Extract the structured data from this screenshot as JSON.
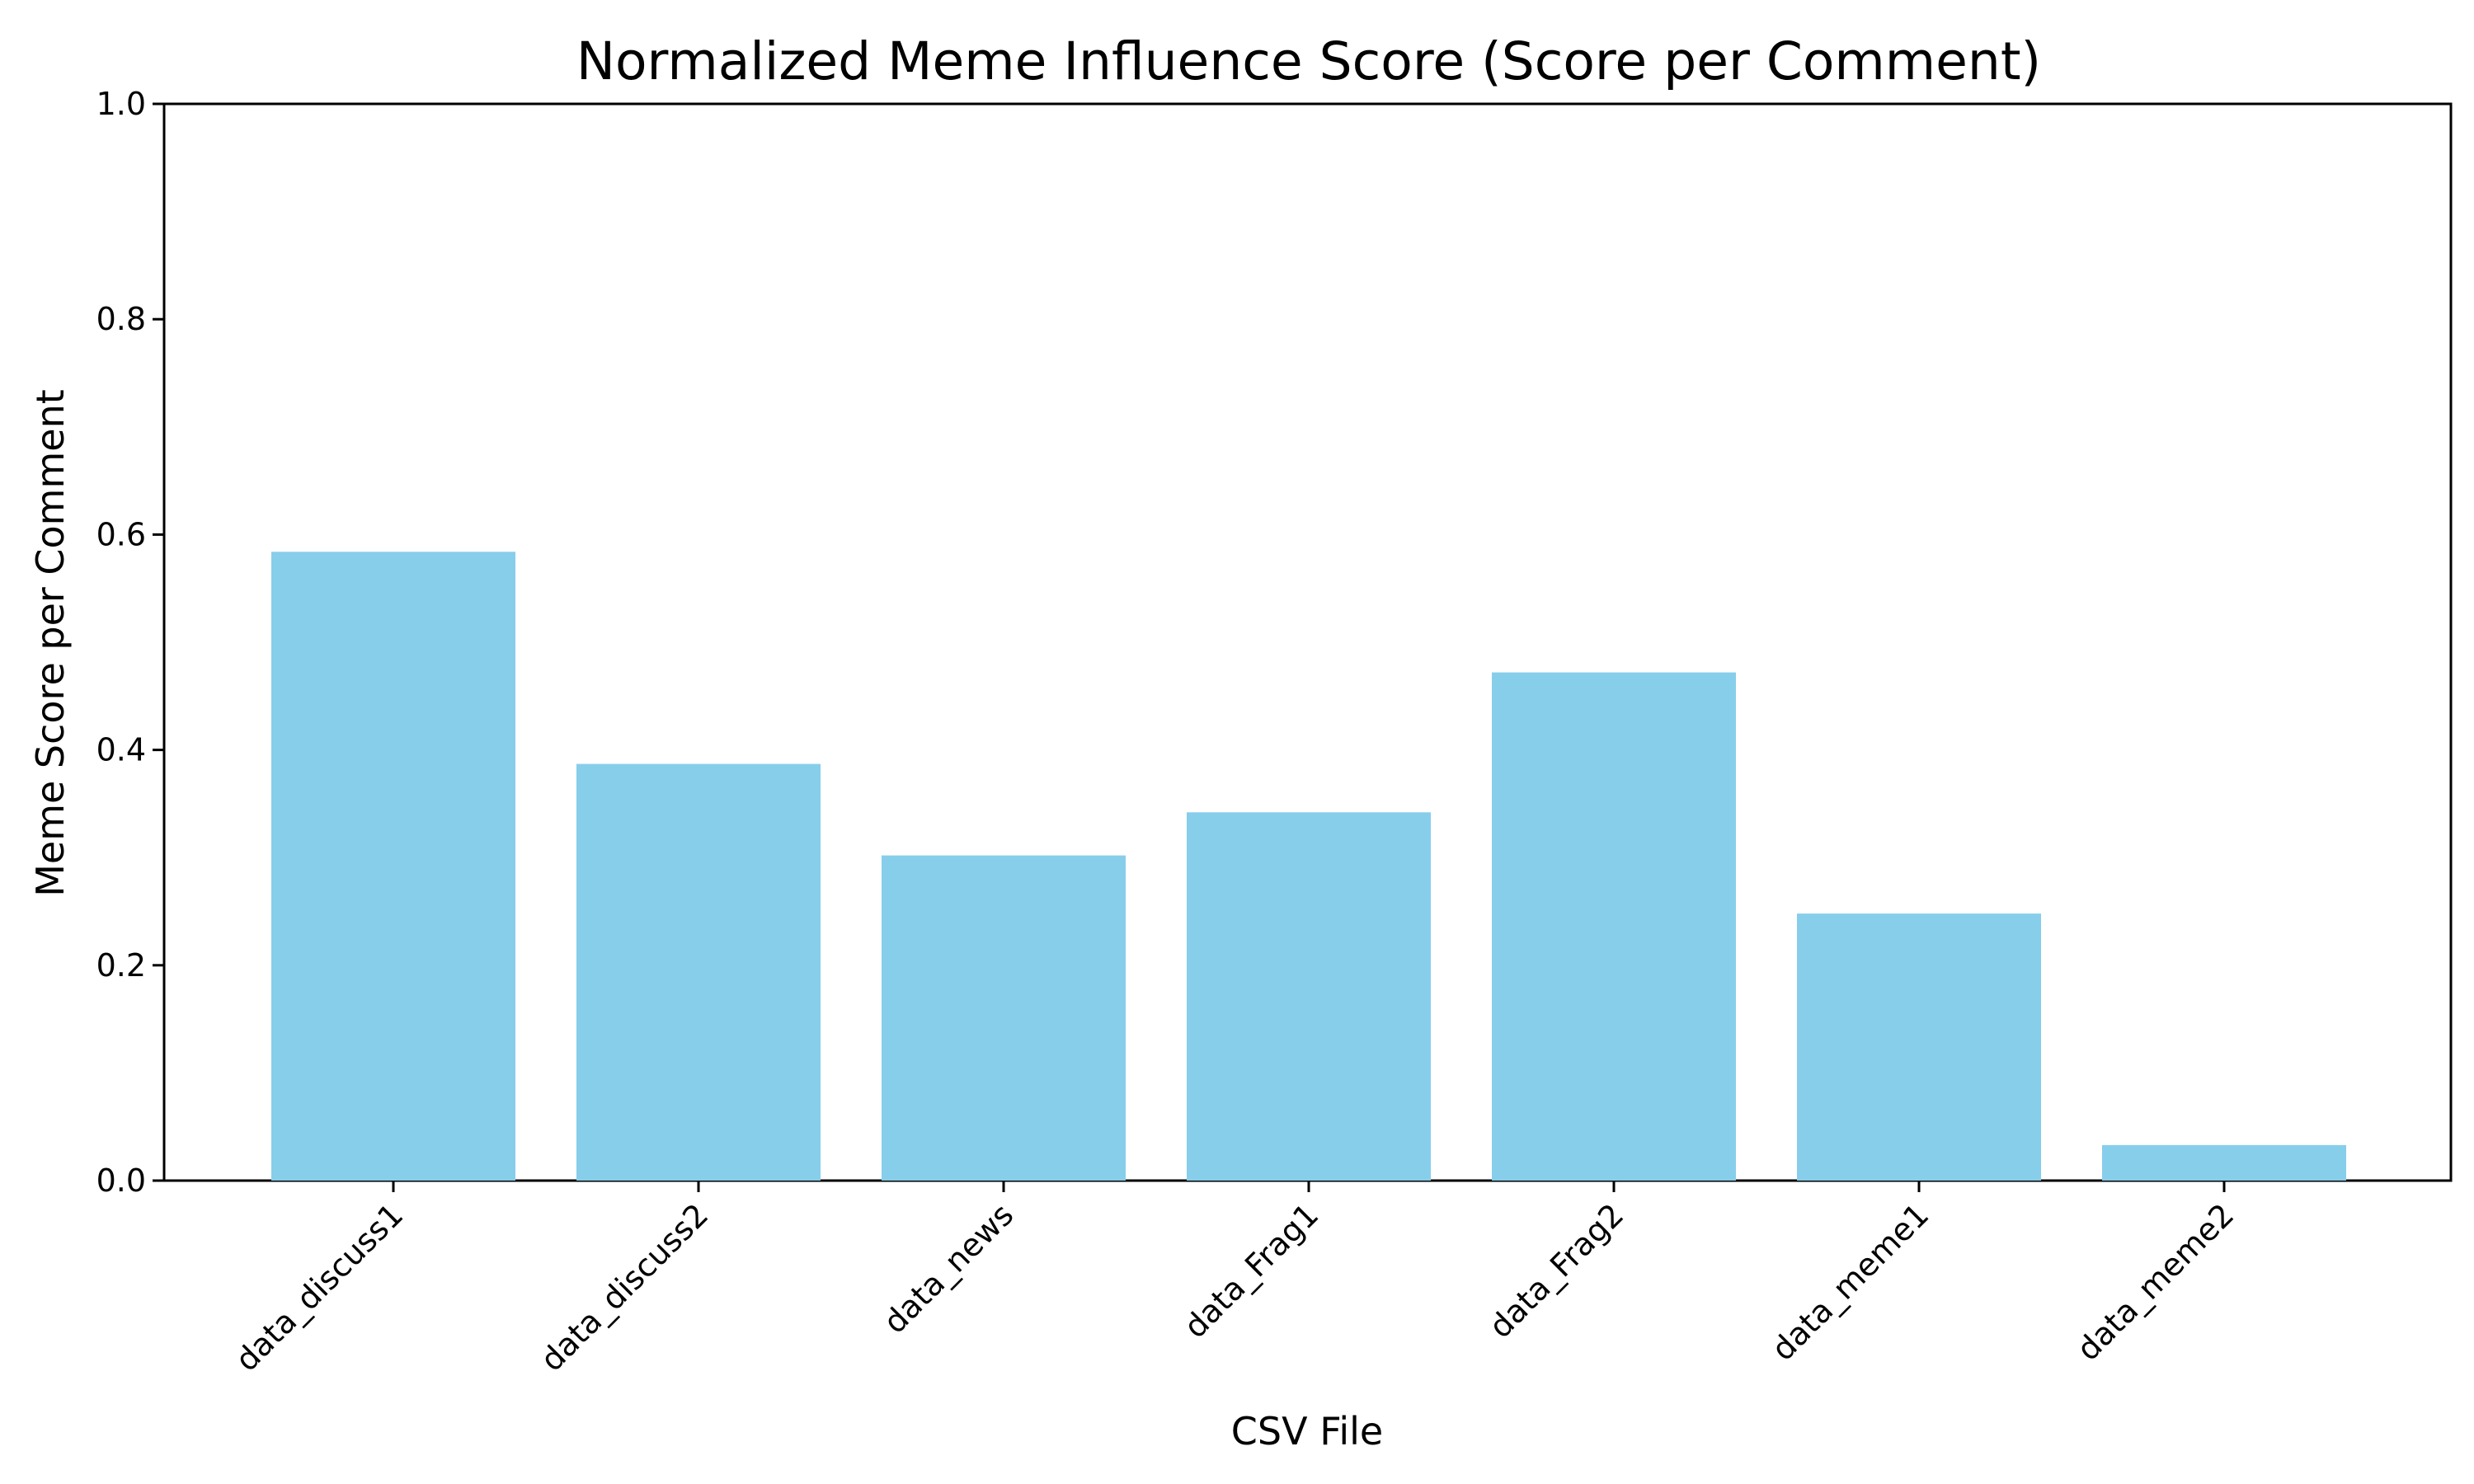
{
  "chart_data": {
    "type": "bar",
    "title": "Normalized Meme Influence Score (Score per Comment)",
    "xlabel": "CSV File",
    "ylabel": "Meme Score per Comment",
    "categories": [
      "data_discuss1",
      "data_discuss2",
      "data_news",
      "data_Frag1",
      "data_Frag2",
      "data_meme1",
      "data_meme2"
    ],
    "values": [
      0.584,
      0.387,
      0.302,
      0.342,
      0.472,
      0.248,
      0.033
    ],
    "ylim": [
      0.0,
      1.0
    ],
    "yticks": [
      "0.0",
      "0.2",
      "0.4",
      "0.6",
      "0.8",
      "1.0"
    ],
    "grid": false,
    "legend": "none",
    "colors": {
      "bar": "#87CEEB",
      "axis": "#000000",
      "background": "#ffffff"
    }
  }
}
